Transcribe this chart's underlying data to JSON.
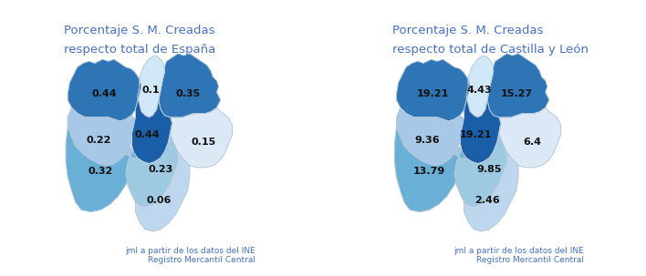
{
  "title1_line1": "Porcentaje S. M. Creadas",
  "title1_line2": "respecto total de España",
  "title2_line1": "Porcentaje S. M. Creadas",
  "title2_line2": "respecto total de Castilla y León",
  "title_color": "#4472c4",
  "footnote": "jml a partir de los datos del INE\nRegistro Mercantil Central",
  "footnote_color": "#4472c4",
  "bg_color": "#ffffff",
  "province_colors1": {
    "Leon": "#2E75B6",
    "Palencia": "#D0E8F7",
    "Burgos": "#2E75B6",
    "Zamora": "#A8C8E8",
    "Valladolid": "#1A5EA8",
    "Soria": "#DAE9F5",
    "Salamanca": "#6AAFD6",
    "Avila": "#9ECAE1",
    "Segovia": "#BDD7EE"
  },
  "province_colors2": {
    "Leon": "#2E75B6",
    "Palencia": "#D0E8F7",
    "Burgos": "#2E75B6",
    "Zamora": "#A8C8E8",
    "Valladolid": "#1A5EA8",
    "Soria": "#DAE9F5",
    "Salamanca": "#6AAFD6",
    "Avila": "#9ECAE1",
    "Segovia": "#BDD7EE"
  },
  "values1": {
    "Leon": "0.44",
    "Palencia": "0.1",
    "Burgos": "0.35",
    "Zamora": "0.22",
    "Valladolid": "0.44",
    "Soria": "0.15",
    "Salamanca": "0.32",
    "Avila": "0.23",
    "Segovia": "0.06"
  },
  "values2": {
    "Leon": "19.21",
    "Palencia": "4.43",
    "Burgos": "15.27",
    "Zamora": "9.36",
    "Valladolid": "19.21",
    "Soria": "6.4",
    "Salamanca": "13.79",
    "Avila": "9.85",
    "Segovia": "2.46"
  },
  "label_color": "#111111",
  "label_fontsize": 8,
  "title_fontsize": 9.5,
  "footnote_fontsize": 6.5
}
